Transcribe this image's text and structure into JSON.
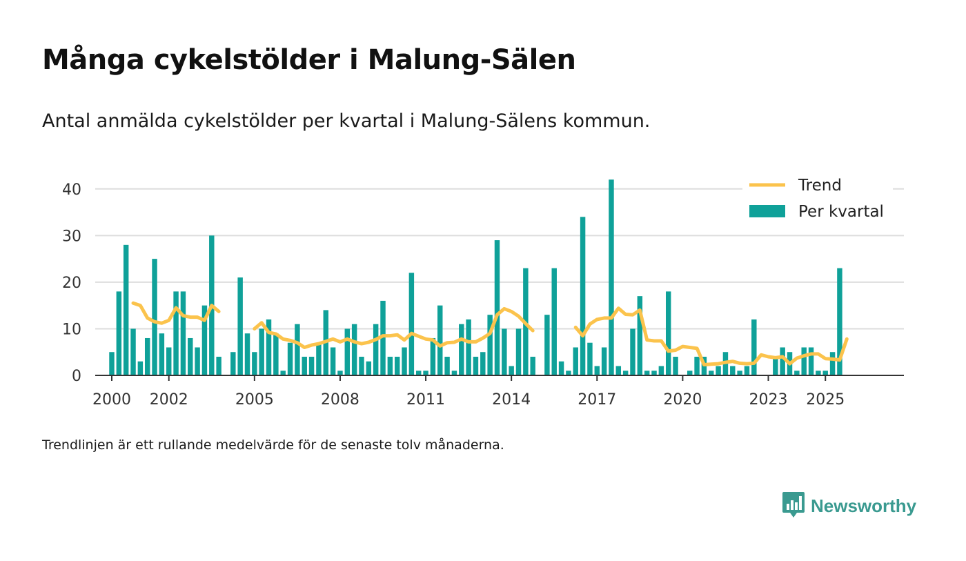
{
  "header": {
    "title": "Många cykelstölder i Malung-Sälen",
    "subtitle": "Antal anmälda cykelstölder per kvartal i Malung-Sälens kommun."
  },
  "footer": {
    "note": "Trendlinjen är ett rullande medelvärde för de senaste tolv månaderna.",
    "brand": "Newsworthy"
  },
  "colors": {
    "bar": "#0fa199",
    "trend": "#fbc34c",
    "grid": "#dddddd",
    "axis": "#333333",
    "brand": "#3a9a90"
  },
  "chart_data": {
    "type": "bar",
    "title": "Många cykelstölder i Malung-Sälen",
    "xlabel": "",
    "ylabel": "",
    "ylim": [
      0,
      45
    ],
    "yticks": [
      0,
      10,
      20,
      30,
      40
    ],
    "xlim": [
      1999.42,
      2027.75
    ],
    "xticks": [
      {
        "value": 2000,
        "label": "2000"
      },
      {
        "value": 2002,
        "label": "2002"
      },
      {
        "value": 2005,
        "label": "2005"
      },
      {
        "value": 2008,
        "label": "2008"
      },
      {
        "value": 2011,
        "label": "2011"
      },
      {
        "value": 2014,
        "label": "2014"
      },
      {
        "value": 2017,
        "label": "2017"
      },
      {
        "value": 2020,
        "label": "2020"
      },
      {
        "value": 2023,
        "label": "2023"
      },
      {
        "value": 2025,
        "label": "2025"
      }
    ],
    "legend": {
      "placement": "top-right",
      "entries": [
        {
          "name": "Trend",
          "kind": "line"
        },
        {
          "name": "Per kvartal",
          "kind": "bar"
        }
      ]
    },
    "series": [
      {
        "name": "Per kvartal",
        "kind": "bar",
        "start_year": 2000,
        "values": [
          5,
          18,
          28,
          10,
          3,
          8,
          25,
          9,
          6,
          18,
          18,
          8,
          6,
          15,
          30,
          4,
          0,
          5,
          21,
          9,
          5,
          10,
          12,
          9,
          1,
          7,
          11,
          4,
          4,
          7,
          14,
          6,
          1,
          10,
          11,
          4,
          3,
          11,
          16,
          4,
          4,
          6,
          22,
          1,
          1,
          8,
          15,
          4,
          1,
          11,
          12,
          4,
          5,
          13,
          29,
          10,
          2,
          10,
          23,
          4,
          0,
          13,
          23,
          3,
          1,
          6,
          34,
          7,
          2,
          6,
          42,
          2,
          1,
          10,
          17,
          1,
          1,
          2,
          18,
          4,
          0,
          1,
          4,
          4,
          1,
          2,
          5,
          2,
          1,
          2,
          12,
          0,
          0,
          4,
          6,
          5,
          1,
          6,
          6,
          1,
          1,
          5,
          23
        ]
      },
      {
        "name": "Trend",
        "kind": "line",
        "segments": [
          {
            "start_year": 2000.75,
            "values": [
              15.5,
              15,
              12.3,
              11.5,
              11.2,
              11.8,
              14.5,
              12.8,
              12.5,
              12.5,
              11.8,
              15,
              13.7
            ]
          },
          {
            "start_year": 2005.0,
            "values": [
              10,
              11.3,
              9.2,
              8.9,
              7.8,
              7.5,
              7,
              6,
              6.5,
              6.8,
              7.3,
              7.8,
              7.2,
              7.8,
              7.2,
              6.8,
              7.1,
              7.7,
              8.5,
              8.5,
              8.7,
              7.6,
              9,
              8.4,
              7.8,
              7.6,
              6.3,
              7,
              7.1,
              7.8,
              7.2,
              7.2,
              8,
              9,
              13,
              14.3,
              13.7,
              12.7,
              11.1,
              9.6
            ]
          },
          {
            "start_year": 2016.25,
            "values": [
              10.3,
              8.5,
              11,
              12,
              12.3,
              12.3,
              14.4,
              13.1,
              13,
              14,
              7.6,
              7.4,
              7.4,
              5.2,
              5.4,
              6.2,
              6,
              5.8,
              2.3,
              2.4,
              2.5,
              2.8,
              3,
              2.6,
              2.5,
              2.6,
              4.4,
              4,
              3.8,
              4,
              2.5,
              3.7,
              4.2,
              4.6,
              4.6,
              3.6,
              3.5,
              3.3,
              7.8
            ]
          }
        ]
      }
    ]
  }
}
